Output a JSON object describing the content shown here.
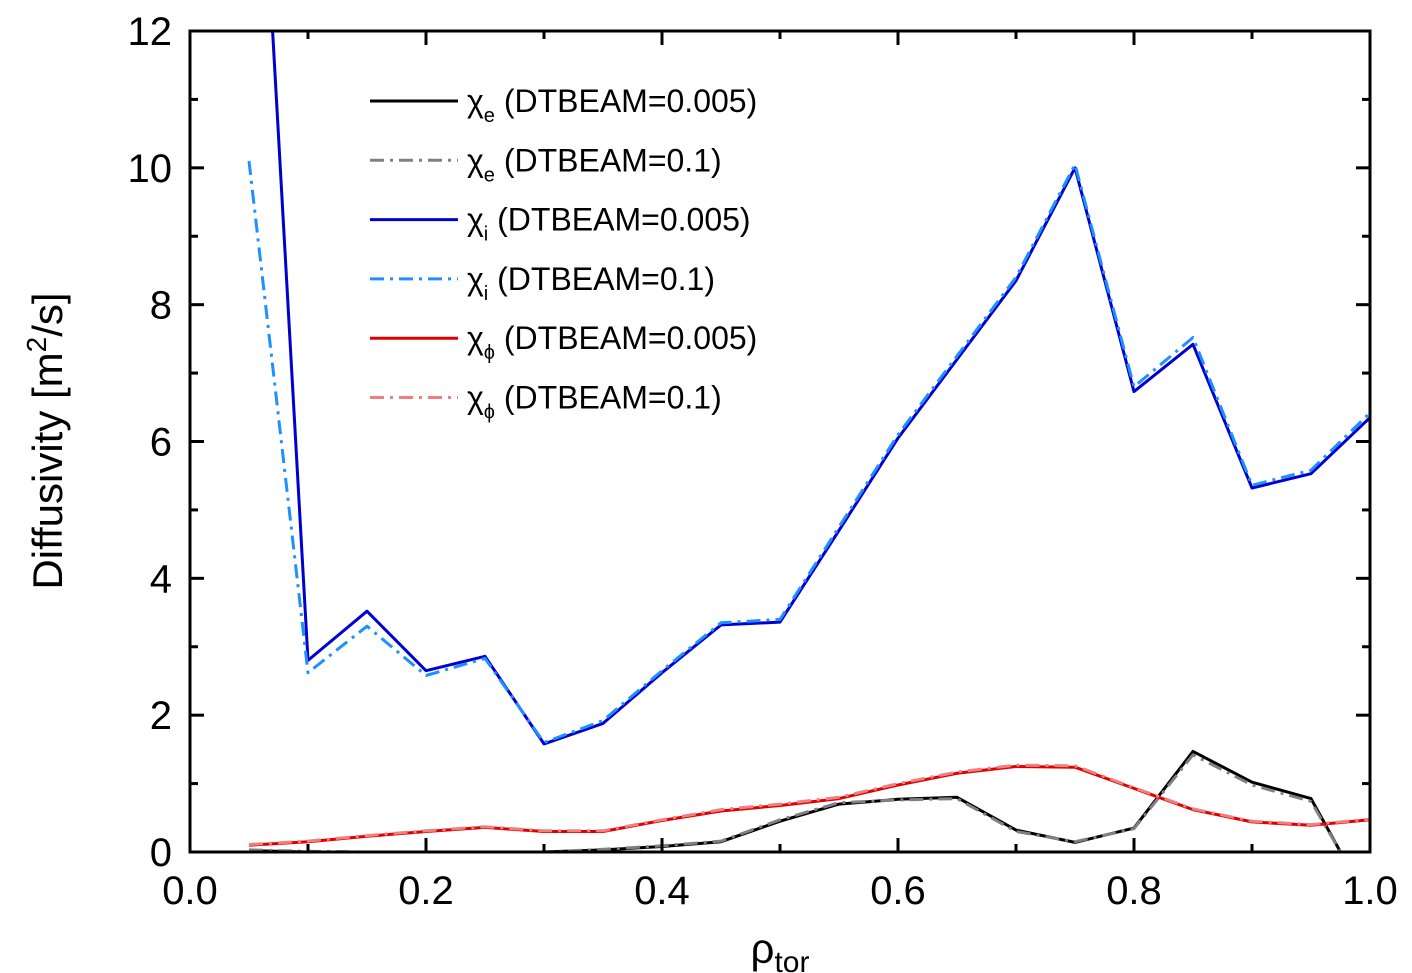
{
  "chart_data": {
    "type": "line",
    "xlabel": {
      "main": "ρ",
      "sub": "tor"
    },
    "ylabel": {
      "prefix": "Diffusivity [m",
      "sup": "2",
      "suffix": "/s]"
    },
    "xlim": [
      0.0,
      1.0
    ],
    "ylim": [
      0,
      12
    ],
    "xticks": [
      "0.0",
      "0.2",
      "0.4",
      "0.6",
      "0.8",
      "1.0"
    ],
    "yticks": [
      "0",
      "2",
      "4",
      "6",
      "8",
      "10",
      "12"
    ],
    "grid": false,
    "legend_position": "top-left",
    "series": [
      {
        "name": "χ_e (DTBEAM=0.005)",
        "legend": {
          "sym": "χ",
          "sub": "e",
          "text": " (DTBEAM=0.005)"
        },
        "color": "#000000",
        "dash": "solid",
        "x": [
          0.05,
          0.1,
          0.15,
          0.2,
          0.25,
          0.3,
          0.35,
          0.4,
          0.45,
          0.5,
          0.55,
          0.6,
          0.65,
          0.7,
          0.75,
          0.8,
          0.85,
          0.9,
          0.95,
          0.975
        ],
        "y": [
          0.02,
          0.0,
          0.0,
          -0.02,
          -0.03,
          0.0,
          0.03,
          0.08,
          0.15,
          0.45,
          0.7,
          0.77,
          0.8,
          0.32,
          0.14,
          0.35,
          1.47,
          1.02,
          0.78,
          0.0
        ]
      },
      {
        "name": "χ_e (DTBEAM=0.1)",
        "legend": {
          "sym": "χ",
          "sub": "e",
          "text": " (DTBEAM=0.1)"
        },
        "color": "#808080",
        "dash": "dashdot",
        "x": [
          0.05,
          0.1,
          0.15,
          0.2,
          0.25,
          0.3,
          0.35,
          0.4,
          0.45,
          0.5,
          0.55,
          0.6,
          0.65,
          0.7,
          0.75,
          0.8,
          0.85,
          0.9,
          0.95,
          0.975
        ],
        "y": [
          0.03,
          0.01,
          0.0,
          -0.02,
          -0.02,
          0.0,
          0.04,
          0.09,
          0.16,
          0.47,
          0.72,
          0.76,
          0.78,
          0.3,
          0.15,
          0.34,
          1.42,
          0.98,
          0.74,
          0.0
        ]
      },
      {
        "name": "χ_i (DTBEAM=0.005)",
        "legend": {
          "sym": "χ",
          "sub": "i",
          "text": " (DTBEAM=0.005)"
        },
        "color": "#0000d0",
        "dash": "solid",
        "x": [
          0.07,
          0.1,
          0.15,
          0.2,
          0.25,
          0.3,
          0.35,
          0.4,
          0.45,
          0.5,
          0.55,
          0.6,
          0.65,
          0.7,
          0.75,
          0.8,
          0.85,
          0.9,
          0.95,
          1.0
        ],
        "y": [
          12.0,
          2.8,
          3.52,
          2.65,
          2.86,
          1.58,
          1.88,
          2.62,
          3.32,
          3.36,
          4.7,
          6.05,
          7.2,
          8.35,
          10.0,
          6.73,
          7.42,
          5.32,
          5.53,
          6.35
        ]
      },
      {
        "name": "χ_i (DTBEAM=0.1)",
        "legend": {
          "sym": "χ",
          "sub": "i",
          "text": " (DTBEAM=0.1)"
        },
        "color": "#1e90ff",
        "dash": "dashdot",
        "x": [
          0.05,
          0.1,
          0.15,
          0.2,
          0.25,
          0.3,
          0.35,
          0.4,
          0.45,
          0.5,
          0.55,
          0.6,
          0.65,
          0.7,
          0.75,
          0.8,
          0.85,
          0.9,
          0.95,
          1.0
        ],
        "y": [
          10.1,
          2.62,
          3.3,
          2.58,
          2.83,
          1.6,
          1.92,
          2.65,
          3.35,
          3.4,
          4.75,
          6.1,
          7.25,
          8.4,
          10.05,
          6.8,
          7.52,
          5.36,
          5.58,
          6.42
        ]
      },
      {
        "name": "χ_φ (DTBEAM=0.005)",
        "legend": {
          "sym": "χ",
          "sub": "ϕ",
          "text": " (DTBEAM=0.005)"
        },
        "color": "#e00000",
        "dash": "solid",
        "x": [
          0.05,
          0.1,
          0.15,
          0.2,
          0.25,
          0.3,
          0.35,
          0.4,
          0.45,
          0.5,
          0.55,
          0.6,
          0.65,
          0.7,
          0.75,
          0.8,
          0.85,
          0.9,
          0.95,
          1.0
        ],
        "y": [
          0.1,
          0.15,
          0.23,
          0.3,
          0.36,
          0.3,
          0.3,
          0.46,
          0.6,
          0.68,
          0.78,
          0.98,
          1.15,
          1.25,
          1.24,
          0.93,
          0.62,
          0.44,
          0.39,
          0.47
        ]
      },
      {
        "name": "χ_φ (DTBEAM=0.1)",
        "legend": {
          "sym": "χ",
          "sub": "ϕ",
          "text": " (DTBEAM=0.1)"
        },
        "color": "#f08080",
        "dash": "dashdot",
        "x": [
          0.05,
          0.1,
          0.15,
          0.2,
          0.25,
          0.3,
          0.35,
          0.4,
          0.45,
          0.5,
          0.55,
          0.6,
          0.65,
          0.7,
          0.75,
          0.8,
          0.85,
          0.9,
          0.95,
          1.0
        ],
        "y": [
          0.11,
          0.16,
          0.24,
          0.31,
          0.37,
          0.31,
          0.31,
          0.47,
          0.62,
          0.7,
          0.8,
          1.0,
          1.17,
          1.27,
          1.26,
          0.94,
          0.63,
          0.45,
          0.4,
          0.48
        ]
      }
    ]
  }
}
